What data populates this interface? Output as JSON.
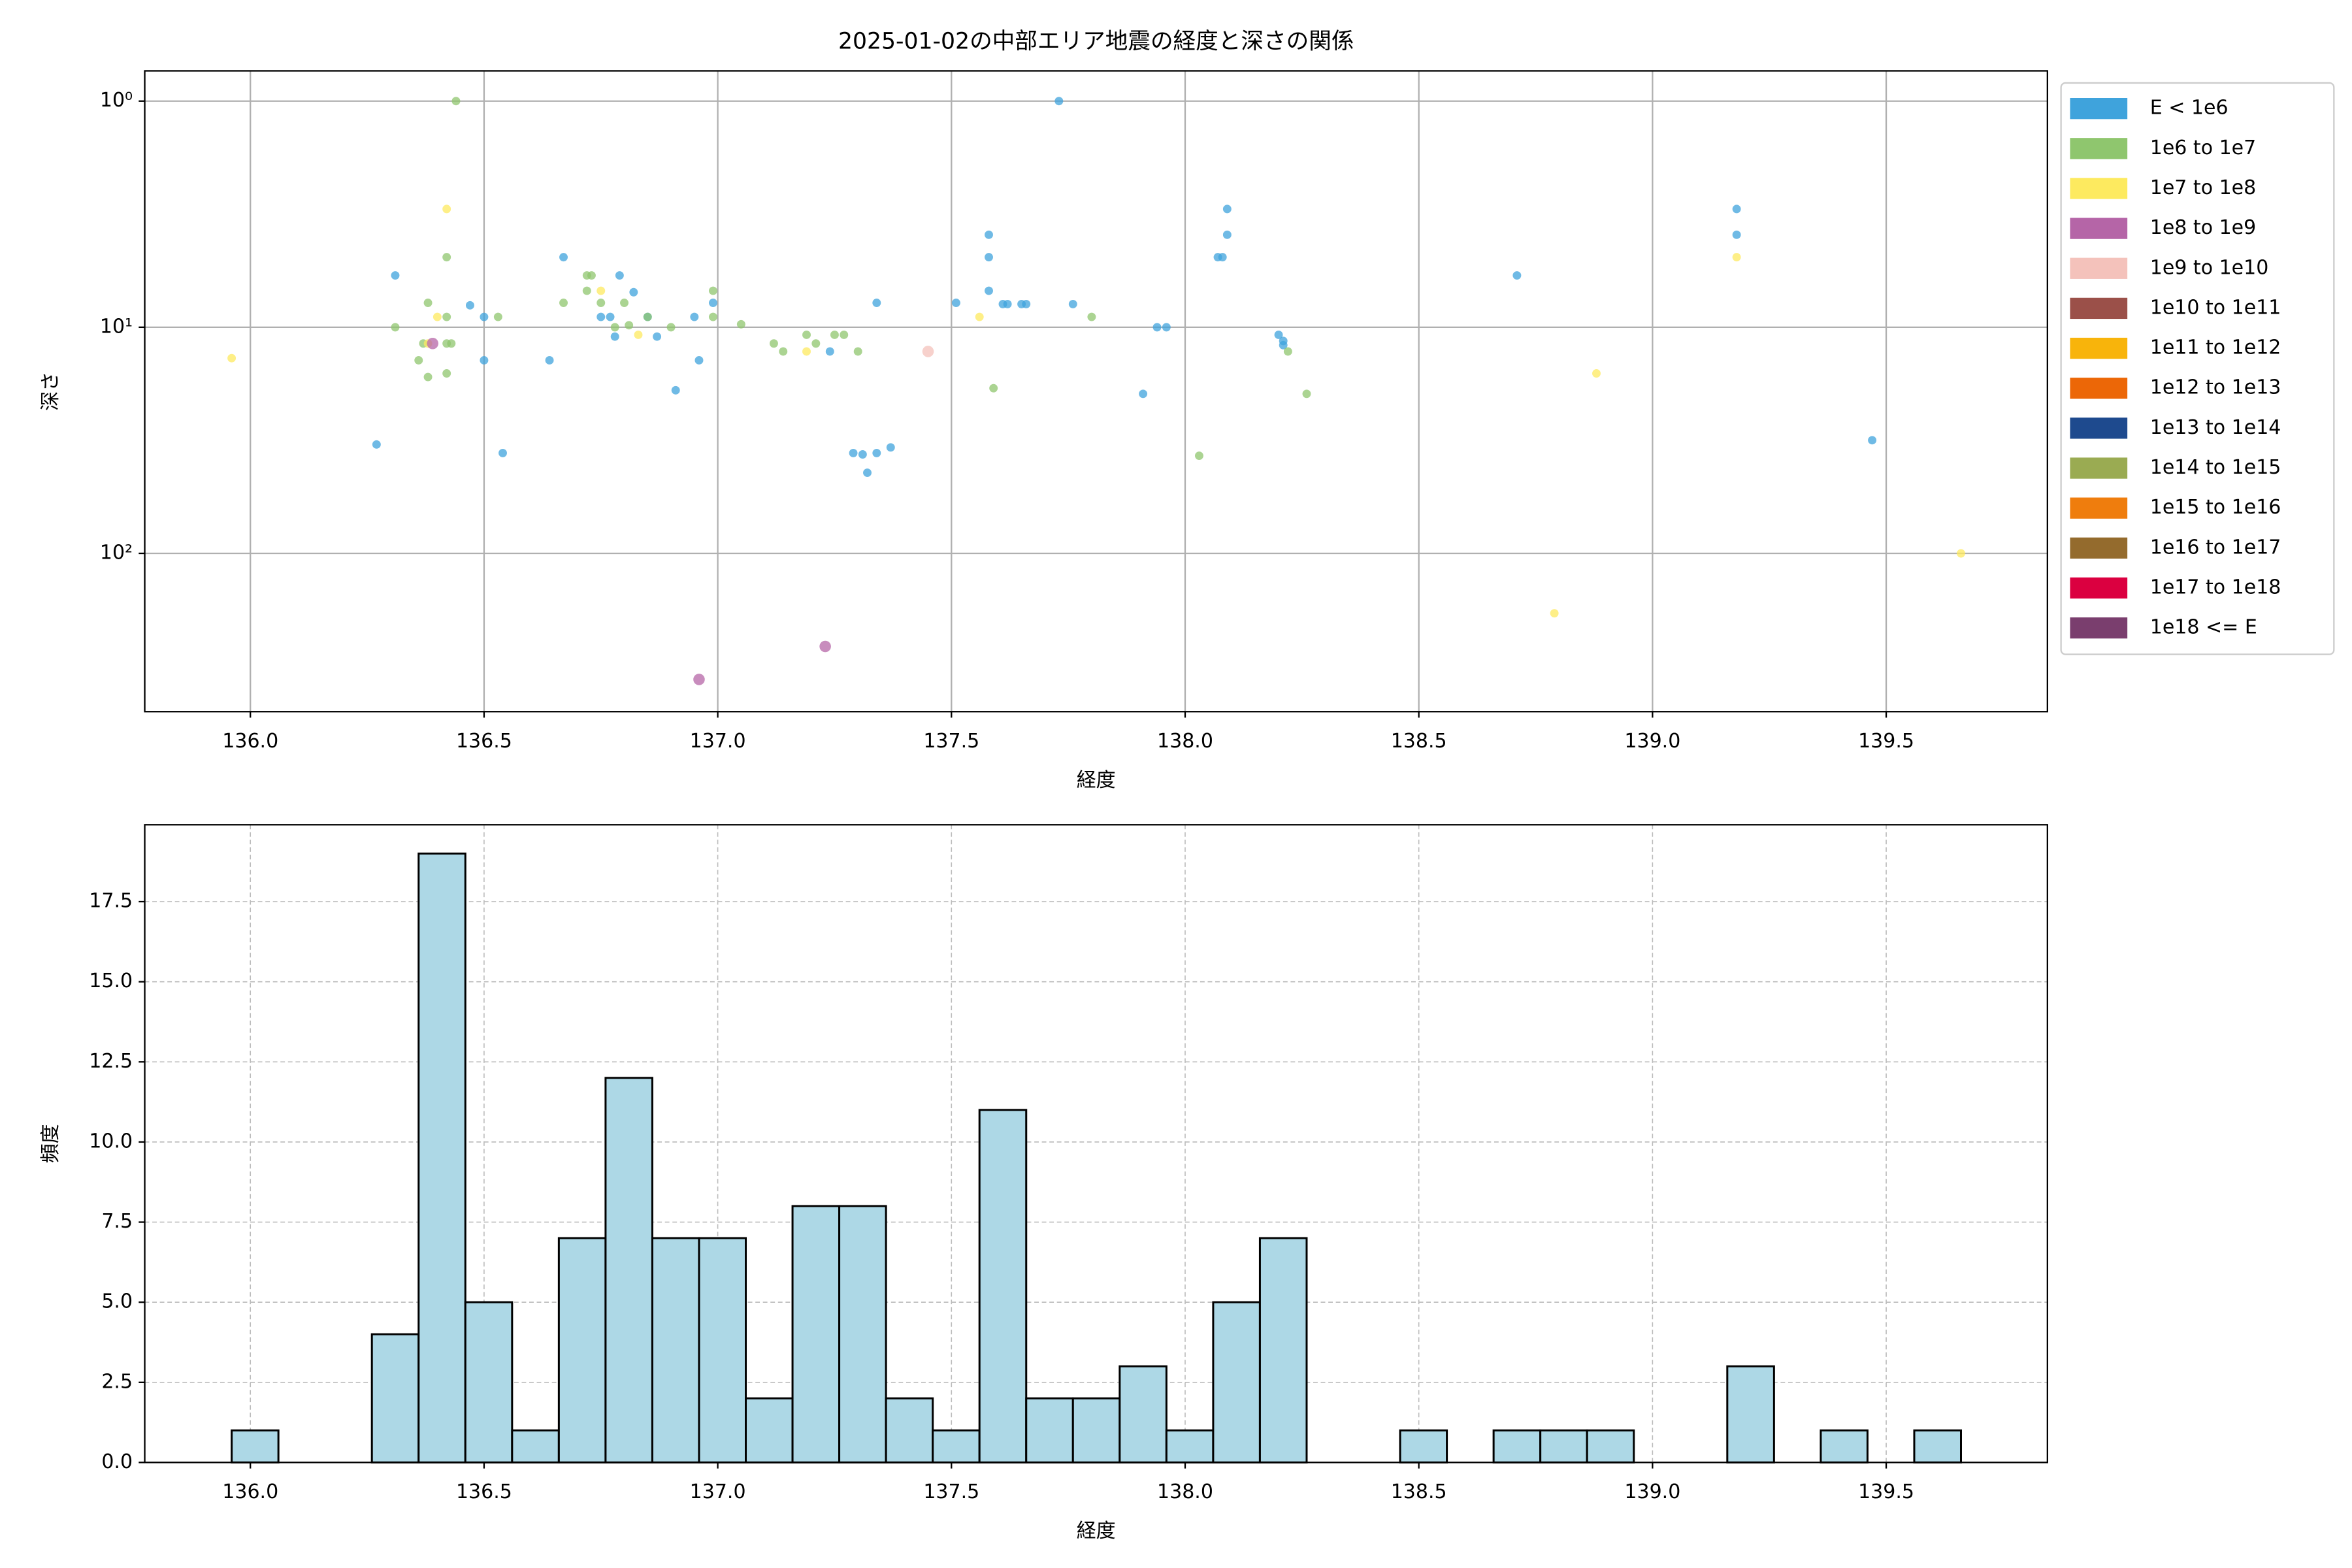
{
  "chart_data": [
    {
      "type": "scatter",
      "title": "2025-01-02の中部エリア地震の経度と深さの関係",
      "x_label": "経度",
      "y_label": "深さ",
      "y_scale": "log",
      "y_inverted": true,
      "grid": true,
      "legend": "outside right",
      "xlim": [
        135.774,
        139.845
      ],
      "ylim": [
        0.735,
        501
      ],
      "xticks": [
        {
          "value": 136,
          "label": "136.0"
        },
        136.5,
        {
          "value": 137,
          "label": "137.0"
        },
        137.5,
        {
          "value": 138,
          "label": "138.0"
        },
        138.5,
        {
          "value": 139,
          "label": "139.0"
        },
        139.5
      ],
      "yticks": [
        {
          "value": 1,
          "label": "10⁰"
        },
        {
          "value": 10,
          "label": "10¹"
        },
        {
          "value": 100,
          "label": "10²"
        }
      ],
      "series": [
        {
          "name": "E < 1e6",
          "color": "#3fa3dc",
          "x": [
            136.31,
            136.27,
            136.47,
            136.5,
            136.5,
            136.54,
            136.64,
            136.67,
            136.75,
            136.77,
            136.78,
            136.79,
            136.82,
            136.85,
            136.87,
            136.91,
            136.95,
            136.96,
            136.99,
            137.34,
            137.24,
            137.29,
            137.31,
            137.32,
            137.34,
            137.37,
            137.51,
            137.58,
            137.58,
            137.58,
            137.61,
            137.62,
            137.65,
            137.66,
            137.73,
            137.76,
            137.91,
            137.94,
            137.96,
            138.07,
            138.08,
            138.09,
            138.09,
            138.2,
            138.21,
            138.21,
            138.71,
            139.18,
            139.18,
            139.47
          ],
          "values": [
            5.9,
            33,
            8,
            9,
            14,
            36,
            14,
            4.9,
            9,
            9,
            11,
            5.9,
            7,
            9,
            11,
            19,
            9,
            14,
            7.8,
            7.8,
            12.8,
            36,
            36.5,
            44,
            36,
            34,
            7.8,
            3.9,
            4.9,
            6.9,
            7.9,
            7.9,
            7.9,
            7.9,
            1,
            7.9,
            19.7,
            10,
            10,
            4.9,
            4.9,
            3.9,
            3,
            10.8,
            11.5,
            12,
            5.9,
            3.9,
            3,
            31.6
          ]
        },
        {
          "name": "1e6 to 1e7",
          "color": "#8fc66e",
          "x": [
            136.44,
            136.42,
            136.31,
            136.38,
            136.36,
            136.37,
            136.38,
            136.42,
            136.42,
            136.43,
            136.42,
            136.53,
            136.67,
            136.72,
            136.73,
            136.72,
            136.75,
            136.78,
            136.8,
            136.81,
            136.85,
            136.9,
            136.99,
            136.99,
            137.05,
            137.12,
            137.14,
            137.19,
            137.21,
            137.25,
            137.27,
            137.3,
            137.59,
            137.8,
            138.03,
            138.22,
            138.26
          ],
          "values": [
            1,
            4.9,
            10,
            7.8,
            14,
            11.8,
            16.6,
            16,
            11.8,
            11.8,
            9,
            9,
            7.8,
            5.9,
            5.9,
            6.9,
            7.8,
            10,
            7.8,
            9.8,
            9,
            10,
            6.9,
            9,
            9.7,
            11.8,
            12.8,
            10.8,
            11.8,
            10.8,
            10.8,
            12.8,
            18.6,
            9,
            37,
            12.8,
            19.7
          ]
        },
        {
          "name": "1e7 to 1e8",
          "color": "#fdea5f",
          "x": [
            135.96,
            136.42,
            136.4,
            136.38,
            136.75,
            136.83,
            137.19,
            137.56,
            138.88,
            138.79,
            139.18,
            139.66
          ],
          "values": [
            13.7,
            3,
            9,
            11.8,
            6.9,
            10.8,
            12.8,
            9,
            16,
            184,
            4.9,
            100
          ]
        },
        {
          "name": "1e8 to 1e9",
          "color": "#b565a7",
          "x": [
            136.39,
            136.96,
            137.23
          ],
          "values": [
            11.8,
            361,
            258
          ]
        },
        {
          "name": "1e9 to 1e10",
          "color": "#f4c2bb",
          "x": [
            137.45
          ],
          "values": [
            12.8
          ]
        },
        {
          "name": "1e10 to 1e11",
          "color": "#9b5049",
          "x": [],
          "values": []
        },
        {
          "name": "1e11 to 1e12",
          "color": "#f8b40b",
          "x": [],
          "values": []
        },
        {
          "name": "1e12 to 1e13",
          "color": "#ec6707",
          "x": [],
          "values": []
        },
        {
          "name": "1e13 to 1e14",
          "color": "#1e4a8e",
          "x": [],
          "values": []
        },
        {
          "name": "1e14 to 1e15",
          "color": "#9aab52",
          "x": [],
          "values": []
        },
        {
          "name": "1e15 to 1e16",
          "color": "#ef7d0d",
          "x": [],
          "values": []
        },
        {
          "name": "1e16 to 1e17",
          "color": "#946b2d",
          "x": [],
          "values": []
        },
        {
          "name": "1e17 to 1e18",
          "color": "#db0040",
          "x": [],
          "values": []
        },
        {
          "name": "1e18 <= E",
          "color": "#7a3e6e",
          "x": [],
          "values": []
        }
      ]
    },
    {
      "type": "histogram",
      "x_label": "経度",
      "y_label": "頻度",
      "grid": "dashed",
      "color": "#add8e6",
      "edgecolor": "#000000",
      "xlim": [
        135.774,
        139.845
      ],
      "ylim": [
        0,
        19.9
      ],
      "xticks": [
        {
          "value": 136,
          "label": "136.0"
        },
        136.5,
        {
          "value": 137,
          "label": "137.0"
        },
        137.5,
        {
          "value": 138,
          "label": "138.0"
        },
        138.5,
        {
          "value": 139,
          "label": "139.0"
        },
        139.5
      ],
      "yticks": [
        {
          "value": 0,
          "label": "0.0"
        },
        2.5,
        {
          "value": 5,
          "label": "5.0"
        },
        7.5,
        {
          "value": 10,
          "label": "10.0"
        },
        12.5,
        {
          "value": 15,
          "label": "15.0"
        },
        17.5
      ],
      "bins": [
        135.96,
        136.06,
        136.16,
        136.26,
        136.36,
        136.46,
        136.56,
        136.66,
        136.76,
        136.86,
        136.96,
        137.06,
        137.16,
        137.26,
        137.36,
        137.46,
        137.56,
        137.66,
        137.76,
        137.86,
        137.96,
        138.06,
        138.16,
        138.26,
        138.36,
        138.46,
        138.56,
        138.66,
        138.76,
        138.86,
        138.96,
        139.06,
        139.16,
        139.26,
        139.36,
        139.46,
        139.56,
        139.66
      ],
      "values": [
        1,
        0,
        0,
        4,
        19,
        5,
        1,
        7,
        12,
        7,
        7,
        2,
        8,
        8,
        2,
        1,
        11,
        2,
        2,
        3,
        1,
        5,
        7,
        0,
        0,
        1,
        0,
        1,
        1,
        1,
        0,
        0,
        3,
        0,
        1,
        0,
        1
      ]
    }
  ]
}
